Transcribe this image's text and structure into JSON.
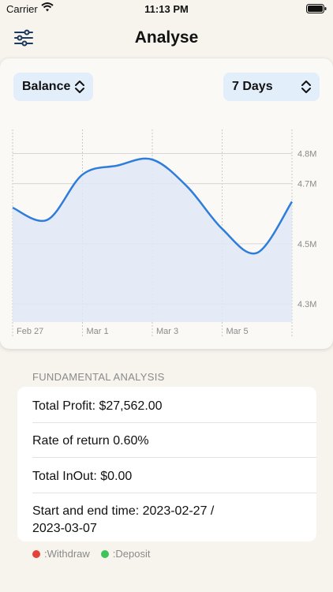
{
  "status": {
    "carrier": "Carrier",
    "time": "11:13 PM"
  },
  "nav": {
    "title": "Analyse",
    "filter_icon": "sliders-icon"
  },
  "selectors": {
    "metric": "Balance",
    "range": "7 Days"
  },
  "chart_data": {
    "type": "area",
    "x": [
      "Feb 27",
      "Feb 28",
      "Mar 1",
      "Mar 2",
      "Mar 3",
      "Mar 4",
      "Mar 5",
      "Mar 6",
      "Mar 7"
    ],
    "tick_labels_x": [
      "Feb 27",
      "Mar 1",
      "Mar 3",
      "Mar 5"
    ],
    "y_tick_labels": [
      "4.8M",
      "4.7M",
      "4.5M",
      "4.3M"
    ],
    "series": [
      {
        "values": [
          4.62,
          4.58,
          4.73,
          4.76,
          4.78,
          4.69,
          4.55,
          4.47,
          4.64
        ]
      }
    ],
    "ylim": [
      4.24,
      4.88
    ],
    "line_color": "#2f7ddb",
    "fill_color": "#dfe9f6",
    "grid": true
  },
  "analysis": {
    "header": "FUNDAMENTAL ANALYSIS",
    "total_profit": "Total Profit: $27,562.00",
    "rate_of_return": "Rate of return 0.60%",
    "total_inout": "Total InOut: $0.00",
    "time_line1": "Start and end time: 2023-02-27 /",
    "time_line2": "2023-03-07"
  },
  "legend": {
    "withdraw": ":Withdraw",
    "deposit": ":Deposit",
    "withdraw_color": "#e5403a",
    "deposit_color": "#3ec45a"
  }
}
